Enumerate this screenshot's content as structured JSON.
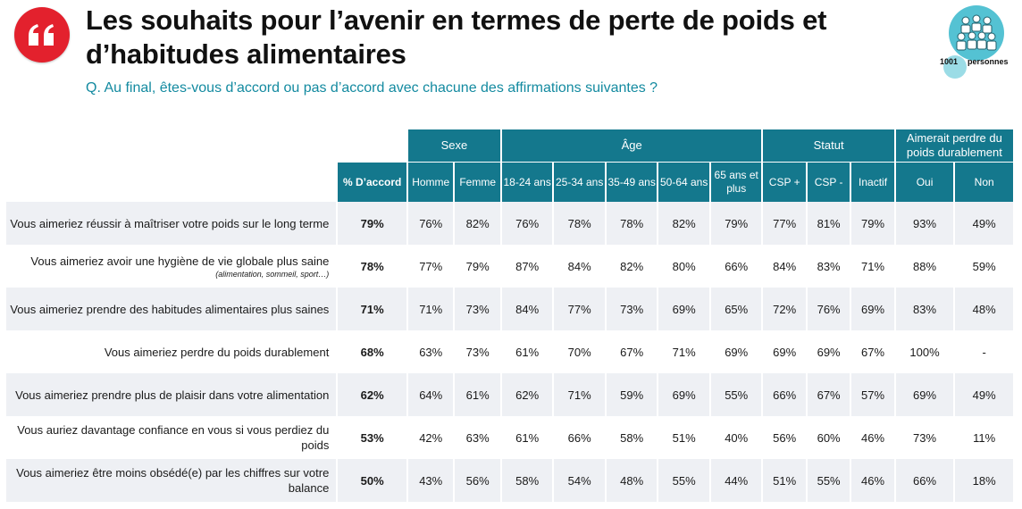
{
  "header": {
    "title": "Les souhaits pour l’avenir en termes de perte de poids et d’habitudes alimentaires",
    "question": "Q. Au final, êtes-vous d’accord ou pas d’accord avec chacune des affirmations suivantes ?",
    "logo_icon": "quote-icon",
    "accent_color": "#e3212d",
    "table_header_color": "#14788d",
    "question_color": "#138aa0"
  },
  "sample": {
    "icon": "people-group-icon",
    "count": "1001",
    "label": "personnes"
  },
  "table": {
    "total_header": "% D’accord",
    "groups": [
      {
        "label": "Sexe",
        "columns": [
          "Homme",
          "Femme"
        ]
      },
      {
        "label": "Âge",
        "columns": [
          "18-24 ans",
          "25-34 ans",
          "35-49 ans",
          "50-64 ans",
          "65 ans et plus"
        ]
      },
      {
        "label": "Statut",
        "columns": [
          "CSP +",
          "CSP -",
          "Inactif"
        ]
      },
      {
        "label": "Aimerait perdre du poids durablement",
        "columns": [
          "Oui",
          "Non"
        ]
      }
    ],
    "rows": [
      {
        "label": "Vous aimeriez réussir à maîtriser votre poids sur le long terme",
        "note": "",
        "total": "79%",
        "values": [
          "76%",
          "82%",
          "76%",
          "78%",
          "78%",
          "82%",
          "79%",
          "77%",
          "81%",
          "79%",
          "93%",
          "49%"
        ]
      },
      {
        "label": "Vous aimeriez avoir une hygiène de vie globale plus saine",
        "note": "(alimentation, sommeil, sport…)",
        "total": "78%",
        "values": [
          "77%",
          "79%",
          "87%",
          "84%",
          "82%",
          "80%",
          "66%",
          "84%",
          "83%",
          "71%",
          "88%",
          "59%"
        ]
      },
      {
        "label": "Vous aimeriez prendre des habitudes alimentaires plus saines",
        "note": "",
        "total": "71%",
        "values": [
          "71%",
          "73%",
          "84%",
          "77%",
          "73%",
          "69%",
          "65%",
          "72%",
          "76%",
          "69%",
          "83%",
          "48%"
        ]
      },
      {
        "label": "Vous aimeriez perdre du poids durablement",
        "note": "",
        "total": "68%",
        "values": [
          "63%",
          "73%",
          "61%",
          "70%",
          "67%",
          "71%",
          "69%",
          "69%",
          "69%",
          "67%",
          "100%",
          "-"
        ]
      },
      {
        "label": "Vous aimeriez prendre plus de plaisir dans votre alimentation",
        "note": "",
        "total": "62%",
        "values": [
          "64%",
          "61%",
          "62%",
          "71%",
          "59%",
          "69%",
          "55%",
          "66%",
          "67%",
          "57%",
          "69%",
          "49%"
        ]
      },
      {
        "label": "Vous auriez davantage confiance en vous si vous perdiez du poids",
        "note": "",
        "total": "53%",
        "values": [
          "42%",
          "63%",
          "61%",
          "66%",
          "58%",
          "51%",
          "40%",
          "56%",
          "60%",
          "46%",
          "73%",
          "11%"
        ]
      },
      {
        "label": "Vous aimeriez être moins obsédé(e) par les chiffres sur votre balance",
        "note": "",
        "total": "50%",
        "values": [
          "43%",
          "56%",
          "58%",
          "54%",
          "48%",
          "55%",
          "44%",
          "51%",
          "55%",
          "46%",
          "66%",
          "18%"
        ]
      }
    ]
  }
}
